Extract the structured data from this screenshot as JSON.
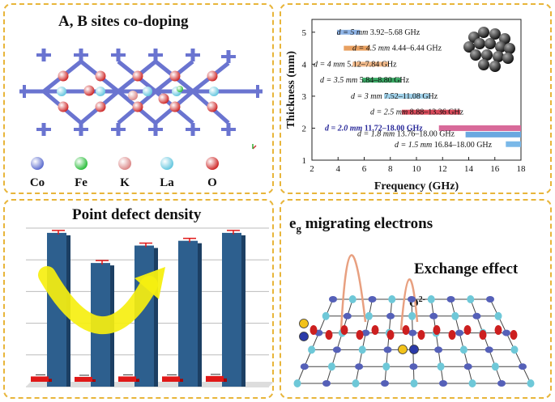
{
  "panel_a": {
    "title": "A, B sites co-doping",
    "legend": [
      {
        "label": "Co",
        "color": "#5566cc"
      },
      {
        "label": "Fe",
        "color": "#22bb33"
      },
      {
        "label": "K",
        "color": "#d98080"
      },
      {
        "label": "La",
        "color": "#5ec4dd"
      },
      {
        "label": "O",
        "color": "#cc1f1f"
      }
    ]
  },
  "panel_b": {
    "chart_data": {
      "type": "bar",
      "orientation": "horizontal",
      "xlabel": "Frequency (GHz)",
      "ylabel": "Thickness (mm)",
      "xlim": [
        2,
        18
      ],
      "ylim": [
        1,
        5.4
      ],
      "xticks": [
        "2",
        "4",
        "6",
        "8",
        "10",
        "12",
        "14",
        "16",
        "18"
      ],
      "yticks": [
        "1",
        "2",
        "3",
        "4",
        "5"
      ],
      "bars": [
        {
          "label": "d = 5 mm",
          "range_text": "3.92–5.68 GHz",
          "thickness": 5.0,
          "start": 3.92,
          "end": 5.68,
          "color": "#8fb4e6"
        },
        {
          "label": "d = 4.5 mm",
          "range_text": "4.44–6.44 GHz",
          "thickness": 4.5,
          "start": 4.44,
          "end": 6.44,
          "color": "#e8a060"
        },
        {
          "label": "d = 4 mm",
          "range_text": "5.12–7.84 GHz",
          "thickness": 4.0,
          "start": 5.12,
          "end": 7.84,
          "color": "#f0b888"
        },
        {
          "label": "d = 3.5 mm",
          "range_text": "5.84–8.80 GHz",
          "thickness": 3.5,
          "start": 5.84,
          "end": 8.8,
          "color": "#3aa864"
        },
        {
          "label": "d = 3 mm",
          "range_text": "7.52–11.08 GHz",
          "thickness": 3.0,
          "start": 7.52,
          "end": 11.08,
          "color": "#a0d0e8"
        },
        {
          "label": "d = 2.5 mm",
          "range_text": "8.88–13.36 GHz",
          "thickness": 2.5,
          "start": 8.88,
          "end": 13.36,
          "color": "#d84a5a"
        },
        {
          "label": "d = 2.0 mm",
          "range_text": "11.72–18.00 GHz",
          "thickness": 2.0,
          "start": 11.72,
          "end": 18.0,
          "color": "#d86a9a"
        },
        {
          "label": "d = 1.8 mm",
          "range_text": "13.76–18.00 GHz",
          "thickness": 1.8,
          "start": 13.76,
          "end": 18.0,
          "color": "#6aa8e0"
        },
        {
          "label": "d = 1.5 mm",
          "range_text": "16.84–18.00 GHz",
          "thickness": 1.5,
          "start": 16.84,
          "end": 18.0,
          "color": "#7ab8e8"
        }
      ]
    }
  },
  "panel_c": {
    "title": "Point defect density",
    "chart_data": {
      "type": "bar",
      "series": [
        {
          "name": "blue",
          "values": [
            0.97,
            0.78,
            0.89,
            0.92,
            0.97
          ],
          "color": "#2d5f8e"
        },
        {
          "name": "red",
          "values": [
            0.12,
            0.11,
            0.12,
            0.12,
            0.13
          ],
          "color": "#e01818"
        }
      ],
      "ylim": [
        0,
        1
      ]
    }
  },
  "panel_d": {
    "title_main": "e",
    "title_sub": "g",
    "title_rest": " migrating electrons",
    "exchange_label": "Exchange effect",
    "oxygen_label": "O",
    "oxygen_sup": "2-"
  }
}
